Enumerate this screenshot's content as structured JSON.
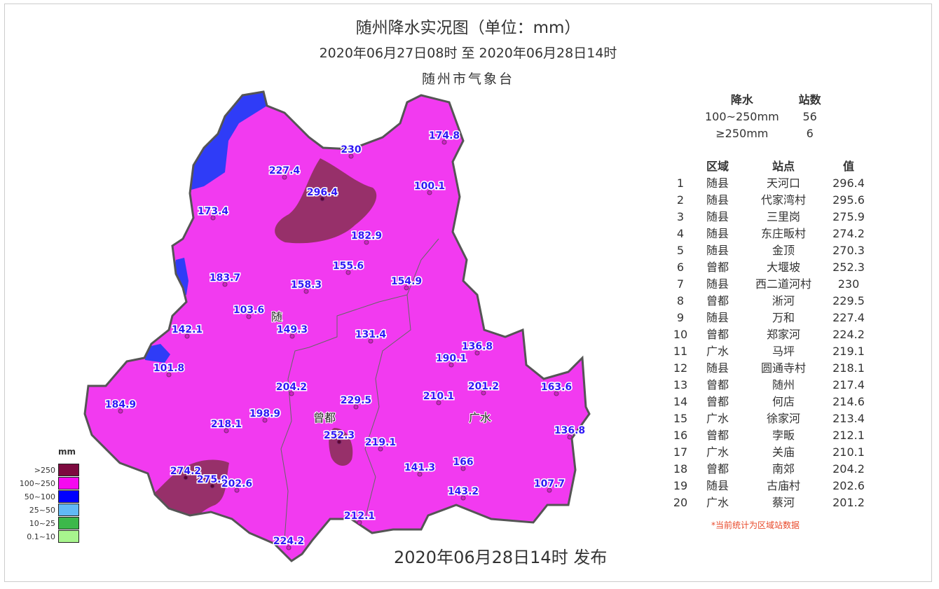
{
  "header": {
    "title": "随州降水实况图（单位：mm）",
    "subtitle": "2020年06月27日08时  至  2020年06月28日14时",
    "organization": "随州市气象台"
  },
  "release": "2020年06月28日14时 发布",
  "colors": {
    "gt250": "#7d0a3f",
    "r100_250": "#f23af0",
    "r50_100": "#0b16f5",
    "r25_50": "#61b9f6",
    "r10_25": "#3cb84a",
    "r0_10": "#a8f58e",
    "boundary": "#555555",
    "label": "#2e17f5"
  },
  "legend": {
    "unit": "mm",
    "items": [
      {
        "label": ">250",
        "color": "#7d0a3f"
      },
      {
        "label": "100~250",
        "color": "#f50af0"
      },
      {
        "label": "50~100",
        "color": "#0000ff"
      },
      {
        "label": "25~50",
        "color": "#61b9f6"
      },
      {
        "label": "10~25",
        "color": "#3cb84a"
      },
      {
        "label": "0.1~10",
        "color": "#a8f58e"
      }
    ]
  },
  "regions": [
    "随",
    "曾都",
    "广水"
  ],
  "stations": [
    "227.4",
    "230",
    "174.8",
    "296.4",
    "100.1",
    "173.4",
    "182.9",
    "155.6",
    "183.7",
    "158.3",
    "154.9",
    "103.6",
    "149.3",
    "131.4",
    "142.1",
    "136.8",
    "190.1",
    "101.8",
    "204.2",
    "201.2",
    "163.6",
    "210.1",
    "229.5",
    "184.9",
    "198.9",
    "218.1",
    "136.8",
    "252.3",
    "219.1",
    "166",
    "141.3",
    "274.2",
    "275.9",
    "202.6",
    "143.2",
    "107.7",
    "212.1",
    "224.2"
  ],
  "stats": {
    "headers": [
      "降水",
      "站数"
    ],
    "rows": [
      [
        "100~250mm",
        "56"
      ],
      [
        "≥250mm",
        "6"
      ]
    ]
  },
  "ranking": {
    "headers": [
      "",
      "区域",
      "站点",
      "值"
    ],
    "rows": [
      [
        "1",
        "随县",
        "天河口",
        "296.4"
      ],
      [
        "2",
        "随县",
        "代家湾村",
        "295.6"
      ],
      [
        "3",
        "随县",
        "三里岗",
        "275.9"
      ],
      [
        "4",
        "随县",
        "东庄畈村",
        "274.2"
      ],
      [
        "5",
        "随县",
        "金顶",
        "270.3"
      ],
      [
        "6",
        "曾都",
        "大堰坡",
        "252.3"
      ],
      [
        "7",
        "随县",
        "西二道河村",
        "230"
      ],
      [
        "8",
        "曾都",
        "淅河",
        "229.5"
      ],
      [
        "9",
        "随县",
        "万和",
        "227.4"
      ],
      [
        "10",
        "曾都",
        "郑家河",
        "224.2"
      ],
      [
        "11",
        "广水",
        "马坪",
        "219.1"
      ],
      [
        "12",
        "随县",
        "圆通寺村",
        "218.1"
      ],
      [
        "13",
        "曾都",
        "随州",
        "217.4"
      ],
      [
        "14",
        "曾都",
        "何店",
        "214.6"
      ],
      [
        "15",
        "广水",
        "徐家河",
        "213.4"
      ],
      [
        "16",
        "曾都",
        "孛畈",
        "212.1"
      ],
      [
        "17",
        "广水",
        "关庙",
        "210.1"
      ],
      [
        "18",
        "曾都",
        "南郊",
        "204.2"
      ],
      [
        "19",
        "随县",
        "古庙村",
        "202.6"
      ],
      [
        "20",
        "广水",
        "蔡河",
        "201.2"
      ]
    ]
  },
  "note": "*当前统计为区域站数据"
}
